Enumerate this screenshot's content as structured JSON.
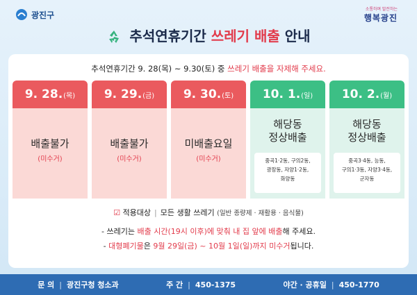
{
  "header": {
    "district": "광진구",
    "slogan_small": "소통하며 발전하는",
    "slogan": "행복광진",
    "title_parts": [
      "추석연휴기간 ",
      "쓰레기 배출",
      " 안내"
    ]
  },
  "notice": {
    "parts": [
      "추석연휴기간 9. 28(목) ~ 9.30(토) 중 ",
      "쓰레기 배출을 자제해 주세요."
    ]
  },
  "days": [
    {
      "date": "9. 28.",
      "weekday": "(목)",
      "status": [
        "배출불가"
      ],
      "note": "(미수거)"
    },
    {
      "date": "9. 29.",
      "weekday": "(금)",
      "status": [
        "배출불가"
      ],
      "note": "(미수거)"
    },
    {
      "date": "9. 30.",
      "weekday": "(토)",
      "status": [
        "미배출요일"
      ],
      "note": "(미수거)"
    },
    {
      "date": "10. 1.",
      "weekday": "(일)",
      "status": [
        "해당동",
        "정상배출"
      ],
      "areas": [
        "중곡1·2동, 구의2동,",
        "광장동, 자양1·2동,",
        "화양동"
      ]
    },
    {
      "date": "10. 2.",
      "weekday": "(월)",
      "status": [
        "해당동",
        "정상배출"
      ],
      "areas": [
        "중곡3·4동, 능동,",
        "구의1·3동, 자양3·4동,",
        "군자동"
      ]
    }
  ],
  "scope": {
    "label": "적용대상",
    "value": "모든 생활 쓰레기",
    "detail": "(일반 종량제 · 재활용 · 음식물)"
  },
  "bullets": [
    {
      "parts": [
        "- 쓰레기는 ",
        "배출 시간(19시 이후)에 맞춰 내 집 앞에 배출",
        "해 주세요."
      ]
    },
    {
      "parts": [
        "- ",
        "대형폐기물",
        "은 ",
        "9월 29일(금) ~ 10월 1일(일)까지 미수거",
        "됩니다."
      ]
    }
  ],
  "footer": {
    "items": [
      {
        "label": "문 의",
        "value": "광진구청 청소과"
      },
      {
        "label": "주 간",
        "value": "450-1375"
      },
      {
        "label": "야간 · 공휴일",
        "value": "450-1770"
      }
    ]
  }
}
